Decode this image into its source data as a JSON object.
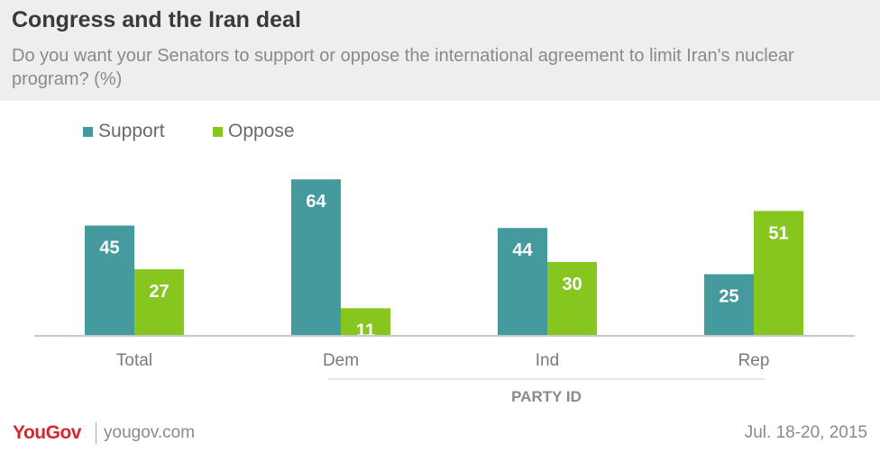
{
  "header": {
    "title": "Congress and the Iran deal",
    "subtitle": "Do you want your Senators to support or oppose the international agreement to limit Iran's nuclear program? (%)"
  },
  "legend": [
    {
      "label": "Support",
      "color": "#449a9c"
    },
    {
      "label": "Oppose",
      "color": "#87c61f"
    }
  ],
  "chart_data": {
    "type": "bar",
    "title": "Congress and the Iran deal",
    "subtitle": "Do you want your Senators to support or oppose the international agreement to limit Iran's nuclear program? (%)",
    "categories": [
      "Total",
      "Dem",
      "Ind",
      "Rep"
    ],
    "series": [
      {
        "name": "Support",
        "color": "#449a9c",
        "values": [
          45,
          64,
          44,
          25
        ]
      },
      {
        "name": "Oppose",
        "color": "#87c61f",
        "values": [
          27,
          11,
          30,
          51
        ]
      }
    ],
    "group_label": "PARTY ID",
    "xlabel": "",
    "ylabel": "",
    "ylim": [
      0,
      70
    ],
    "grid": false,
    "legend_position": "top-left",
    "data_labels": true
  },
  "footer": {
    "logo": "YouGov",
    "site": "yougov.com",
    "date": "Jul. 18-20, 2015"
  }
}
